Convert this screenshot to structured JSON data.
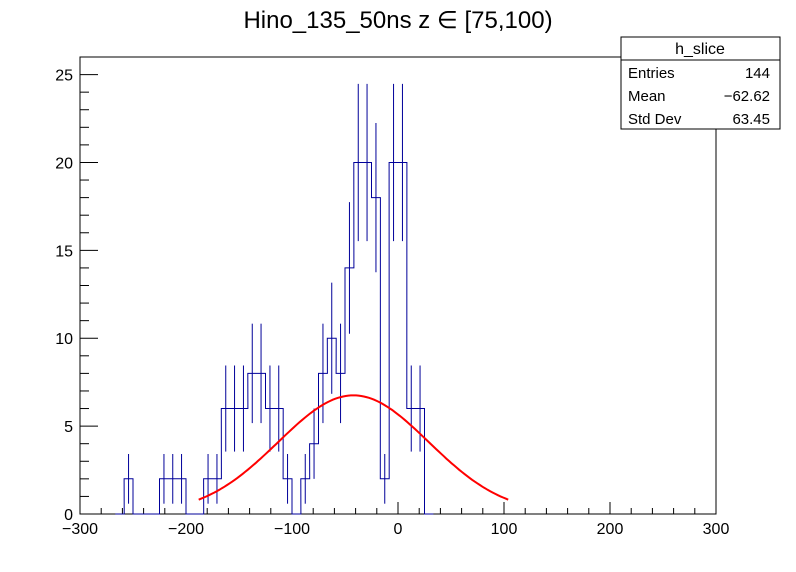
{
  "chart_data": {
    "type": "bar",
    "title": "Hino_135_50ns z  ∈ [75,100)",
    "xlabel": "",
    "ylabel": "",
    "xlim": [
      -300,
      300
    ],
    "ylim": [
      0,
      26.0
    ],
    "x_ticks": [
      -300,
      -200,
      -100,
      0,
      100,
      200,
      300
    ],
    "x_tick_labels": [
      "−300",
      "−200",
      "−100",
      "0",
      "100",
      "200",
      "300"
    ],
    "y_ticks": [
      0,
      5,
      10,
      15,
      20,
      25
    ],
    "y_tick_labels": [
      "0",
      "5",
      "10",
      "15",
      "20",
      "25"
    ],
    "grid": false,
    "histogram": {
      "color": "#000099",
      "bin_width": 8.33,
      "bins": [
        {
          "x": -262.5,
          "y": 0
        },
        {
          "x": -254.2,
          "y": 2
        },
        {
          "x": -245.8,
          "y": 0
        },
        {
          "x": -237.5,
          "y": 0
        },
        {
          "x": -229.2,
          "y": 0
        },
        {
          "x": -220.8,
          "y": 2
        },
        {
          "x": -212.5,
          "y": 2
        },
        {
          "x": -204.2,
          "y": 2
        },
        {
          "x": -195.8,
          "y": 0
        },
        {
          "x": -187.5,
          "y": 0
        },
        {
          "x": -179.2,
          "y": 2
        },
        {
          "x": -170.8,
          "y": 2
        },
        {
          "x": -162.5,
          "y": 6
        },
        {
          "x": -154.2,
          "y": 6
        },
        {
          "x": -145.8,
          "y": 6
        },
        {
          "x": -137.5,
          "y": 8
        },
        {
          "x": -129.2,
          "y": 8
        },
        {
          "x": -120.8,
          "y": 6
        },
        {
          "x": -112.5,
          "y": 6
        },
        {
          "x": -104.2,
          "y": 2
        },
        {
          "x": -95.8,
          "y": 0
        },
        {
          "x": -87.5,
          "y": 2
        },
        {
          "x": -79.2,
          "y": 4
        },
        {
          "x": -70.8,
          "y": 8
        },
        {
          "x": -62.5,
          "y": 10
        },
        {
          "x": -54.2,
          "y": 8
        },
        {
          "x": -45.8,
          "y": 14
        },
        {
          "x": -37.5,
          "y": 20
        },
        {
          "x": -29.2,
          "y": 20
        },
        {
          "x": -20.8,
          "y": 18
        },
        {
          "x": -12.5,
          "y": 2
        },
        {
          "x": -4.2,
          "y": 20
        },
        {
          "x": 4.2,
          "y": 20
        },
        {
          "x": 12.5,
          "y": 6
        },
        {
          "x": 20.8,
          "y": 6
        },
        {
          "x": 29.2,
          "y": 0
        }
      ]
    },
    "fit": {
      "color": "#ff0000",
      "function": "gaussian",
      "amplitude": 6.75,
      "mean": -42,
      "sigma": 71,
      "x_range": [
        -188,
        104
      ]
    }
  },
  "stats_box": {
    "title": "h_slice",
    "rows": [
      {
        "label": "Entries",
        "value": "144"
      },
      {
        "label": "Mean",
        "value": "−62.62"
      },
      {
        "label": "Std Dev",
        "value": "63.45"
      }
    ]
  }
}
